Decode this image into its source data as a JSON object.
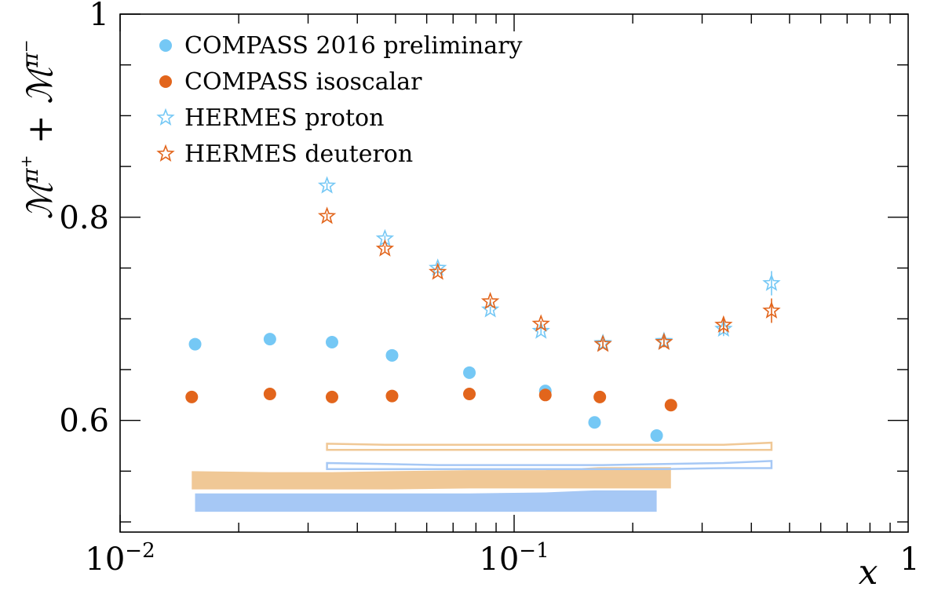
{
  "chart_data": {
    "type": "scatter",
    "title": "",
    "xlabel": "x",
    "ylabel": "M^{π+} + M^{π−}",
    "ylabel_parts": {
      "base": "ℳ",
      "sup1": "π",
      "sup1sign": "+",
      "plus": "+",
      "base2": "ℳ",
      "sup2": "π",
      "sup2sign": "−"
    },
    "x_scale": "log",
    "xlim": [
      0.01,
      1
    ],
    "ylim": [
      0.49,
      1.0
    ],
    "x_ticks": [
      {
        "value": 0.01,
        "base": "10",
        "exp": "−2"
      },
      {
        "value": 0.1,
        "base": "10",
        "exp": "−1"
      },
      {
        "value": 1,
        "text": "1"
      }
    ],
    "y_ticks": [
      {
        "value": 0.6,
        "text": "0.6"
      },
      {
        "value": 0.8,
        "text": "0.8"
      },
      {
        "value": 1.0,
        "text": "1"
      }
    ],
    "grid": false,
    "legend": {
      "placement": "top-left"
    },
    "series": [
      {
        "name": "COMPASS 2016 preliminary",
        "marker": "circle",
        "color": "#75c8f5",
        "x": [
          0.0155,
          0.024,
          0.0345,
          0.049,
          0.077,
          0.12,
          0.16,
          0.23
        ],
        "y": [
          0.675,
          0.68,
          0.677,
          0.664,
          0.647,
          0.629,
          0.598,
          0.585
        ]
      },
      {
        "name": "COMPASS isoscalar",
        "marker": "circle",
        "color": "#e2651c",
        "x": [
          0.0152,
          0.024,
          0.0345,
          0.049,
          0.077,
          0.12,
          0.165,
          0.25
        ],
        "y": [
          0.623,
          0.626,
          0.623,
          0.624,
          0.626,
          0.625,
          0.623,
          0.615
        ]
      },
      {
        "name": "HERMES proton",
        "marker": "open-star",
        "color": "#75c8f5",
        "x": [
          0.0335,
          0.047,
          0.064,
          0.087,
          0.117,
          0.168,
          0.24,
          0.34,
          0.45
        ],
        "y": [
          0.831,
          0.779,
          0.75,
          0.709,
          0.688,
          0.676,
          0.678,
          0.69,
          0.735
        ],
        "yerr": [
          0.003,
          0.003,
          0.003,
          0.003,
          0.003,
          0.004,
          0.005,
          0.007,
          0.012
        ]
      },
      {
        "name": "HERMES deuteron",
        "marker": "open-star",
        "color": "#e2651c",
        "x": [
          0.0335,
          0.047,
          0.064,
          0.087,
          0.117,
          0.168,
          0.24,
          0.34,
          0.45
        ],
        "y": [
          0.801,
          0.769,
          0.746,
          0.717,
          0.695,
          0.675,
          0.677,
          0.694,
          0.708
        ],
        "yerr": [
          0.003,
          0.003,
          0.003,
          0.003,
          0.003,
          0.004,
          0.005,
          0.008,
          0.012
        ]
      }
    ],
    "systematic_bands": [
      {
        "for": "COMPASS isoscalar",
        "style": "filled",
        "color": "#f0c896",
        "x": [
          0.0152,
          0.024,
          0.0345,
          0.049,
          0.077,
          0.12,
          0.165,
          0.25
        ],
        "low": [
          0.532,
          0.532,
          0.532,
          0.532,
          0.533,
          0.533,
          0.533,
          0.533
        ],
        "high": [
          0.55,
          0.549,
          0.549,
          0.55,
          0.551,
          0.551,
          0.554,
          0.554
        ]
      },
      {
        "for": "COMPASS 2016 preliminary",
        "style": "filled",
        "color": "#a6c8f5",
        "x": [
          0.0155,
          0.024,
          0.0345,
          0.049,
          0.077,
          0.12,
          0.16,
          0.23
        ],
        "low": [
          0.51,
          0.51,
          0.51,
          0.51,
          0.51,
          0.51,
          0.51,
          0.51
        ],
        "high": [
          0.528,
          0.528,
          0.528,
          0.528,
          0.528,
          0.529,
          0.531,
          0.531
        ]
      },
      {
        "for": "HERMES deuteron",
        "style": "outline",
        "color": "#f0c896",
        "x": [
          0.0335,
          0.047,
          0.064,
          0.087,
          0.117,
          0.168,
          0.24,
          0.34,
          0.45
        ],
        "low": [
          0.571,
          0.571,
          0.571,
          0.571,
          0.571,
          0.571,
          0.571,
          0.571,
          0.571
        ],
        "high": [
          0.577,
          0.576,
          0.576,
          0.576,
          0.576,
          0.576,
          0.576,
          0.576,
          0.578
        ]
      },
      {
        "for": "HERMES proton",
        "style": "outline",
        "color": "#a6c8f5",
        "x": [
          0.0335,
          0.047,
          0.064,
          0.087,
          0.117,
          0.168,
          0.24,
          0.34,
          0.45
        ],
        "low": [
          0.552,
          0.552,
          0.552,
          0.552,
          0.552,
          0.552,
          0.552,
          0.553,
          0.553
        ],
        "high": [
          0.558,
          0.557,
          0.556,
          0.556,
          0.556,
          0.556,
          0.557,
          0.558,
          0.56
        ]
      }
    ]
  }
}
